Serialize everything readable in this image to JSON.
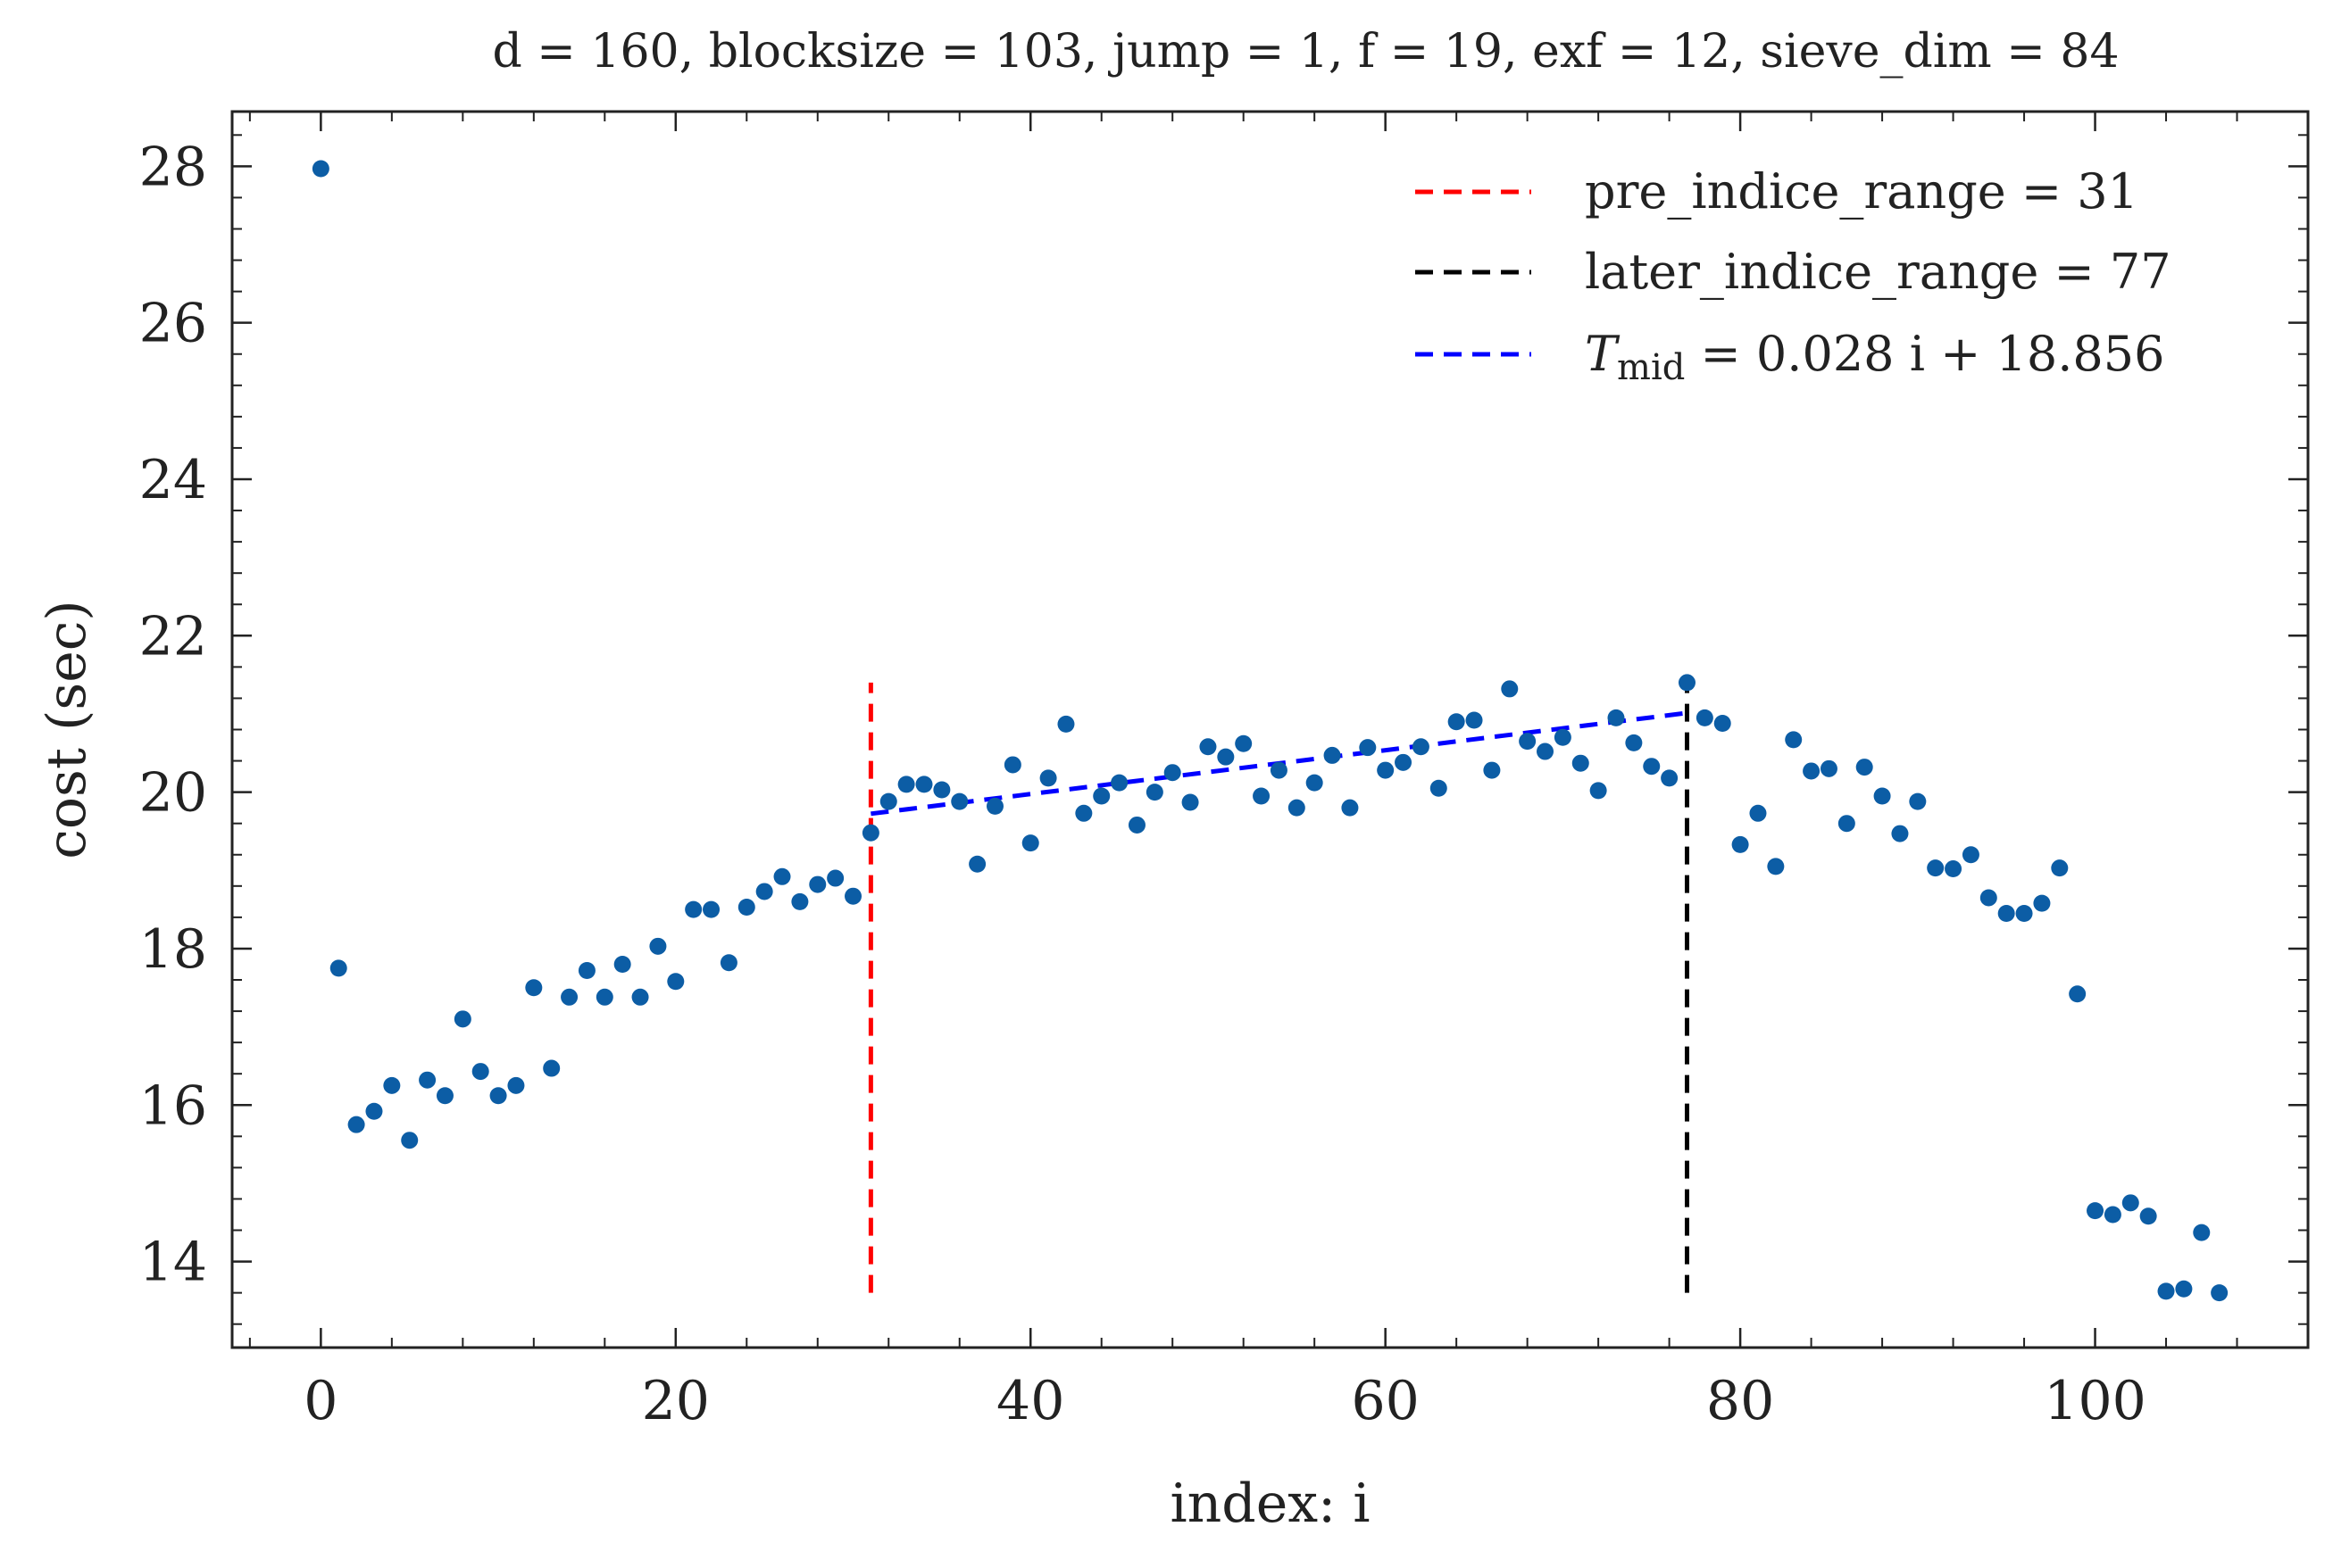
{
  "chart_data": {
    "type": "scatter",
    "title": "d = 160, blocksize = 103, jump = 1, f = 19, exf = 12, sieve_dim = 84",
    "xlabel": "index: i",
    "ylabel": "cost (sec)",
    "xlim": [
      -5,
      112
    ],
    "ylim": [
      12.9,
      28.7
    ],
    "xticks": [
      0,
      20,
      40,
      60,
      80,
      100
    ],
    "yticks": [
      14,
      16,
      18,
      20,
      22,
      24,
      26,
      28
    ],
    "x_tick_labels": [
      "0",
      "20",
      "40",
      "60",
      "80",
      "100"
    ],
    "y_tick_labels": [
      "14",
      "16",
      "18",
      "20",
      "22",
      "24",
      "26",
      "28"
    ],
    "grid": false,
    "legend_position": "top-right",
    "colors": {
      "points": "#0c5da5",
      "pre_line": "#ff0000",
      "later_line": "#000000",
      "fit_line": "#0000ff"
    },
    "series": [
      {
        "values": [
          [
            0,
            27.97
          ],
          [
            1,
            17.75
          ],
          [
            2,
            15.75
          ],
          [
            3,
            15.92
          ],
          [
            4,
            16.25
          ],
          [
            5,
            15.55
          ],
          [
            6,
            16.32
          ],
          [
            7,
            16.12
          ],
          [
            8,
            17.1
          ],
          [
            9,
            16.43
          ],
          [
            10,
            16.12
          ],
          [
            11,
            16.25
          ],
          [
            12,
            17.5
          ],
          [
            13,
            16.47
          ],
          [
            14,
            17.38
          ],
          [
            15,
            17.72
          ],
          [
            16,
            17.38
          ],
          [
            17,
            17.8
          ],
          [
            18,
            17.38
          ],
          [
            19,
            18.03
          ],
          [
            20,
            17.58
          ],
          [
            21,
            18.5
          ],
          [
            22,
            18.5
          ],
          [
            23,
            17.82
          ],
          [
            24,
            18.53
          ],
          [
            25,
            18.73
          ],
          [
            26,
            18.92
          ],
          [
            27,
            18.6
          ],
          [
            28,
            18.82
          ],
          [
            29,
            18.9
          ],
          [
            30,
            18.67
          ],
          [
            31,
            19.48
          ],
          [
            32,
            19.88
          ],
          [
            33,
            20.1
          ],
          [
            34,
            20.1
          ],
          [
            35,
            20.03
          ],
          [
            36,
            19.88
          ],
          [
            37,
            19.08
          ],
          [
            38,
            19.82
          ],
          [
            39,
            20.35
          ],
          [
            40,
            19.35
          ],
          [
            41,
            20.18
          ],
          [
            42,
            20.87
          ],
          [
            43,
            19.73
          ],
          [
            44,
            19.95
          ],
          [
            45,
            20.12
          ],
          [
            46,
            19.58
          ],
          [
            47,
            20.0
          ],
          [
            48,
            20.25
          ],
          [
            49,
            19.87
          ],
          [
            50,
            20.58
          ],
          [
            51,
            20.45
          ],
          [
            52,
            20.62
          ],
          [
            53,
            19.95
          ],
          [
            54,
            20.28
          ],
          [
            55,
            19.8
          ],
          [
            56,
            20.12
          ],
          [
            57,
            20.47
          ],
          [
            58,
            19.8
          ],
          [
            59,
            20.57
          ],
          [
            60,
            20.28
          ],
          [
            61,
            20.38
          ],
          [
            62,
            20.58
          ],
          [
            63,
            20.05
          ],
          [
            64,
            20.9
          ],
          [
            65,
            20.92
          ],
          [
            66,
            20.28
          ],
          [
            67,
            21.32
          ],
          [
            68,
            20.65
          ],
          [
            69,
            20.52
          ],
          [
            70,
            20.7
          ],
          [
            71,
            20.37
          ],
          [
            72,
            20.02
          ],
          [
            73,
            20.95
          ],
          [
            74,
            20.63
          ],
          [
            75,
            20.33
          ],
          [
            76,
            20.18
          ],
          [
            77,
            21.4
          ],
          [
            78,
            20.95
          ],
          [
            79,
            20.88
          ],
          [
            80,
            19.33
          ],
          [
            81,
            19.73
          ],
          [
            82,
            19.05
          ],
          [
            83,
            20.67
          ],
          [
            84,
            20.27
          ],
          [
            85,
            20.3
          ],
          [
            86,
            19.6
          ],
          [
            87,
            20.32
          ],
          [
            88,
            19.95
          ],
          [
            89,
            19.47
          ],
          [
            90,
            19.88
          ],
          [
            91,
            19.03
          ],
          [
            92,
            19.02
          ],
          [
            93,
            19.2
          ],
          [
            94,
            18.65
          ],
          [
            95,
            18.45
          ],
          [
            96,
            18.45
          ],
          [
            97,
            18.58
          ],
          [
            98,
            19.03
          ],
          [
            99,
            17.42
          ],
          [
            100,
            14.65
          ],
          [
            101,
            14.6
          ],
          [
            102,
            14.75
          ],
          [
            103,
            14.58
          ],
          [
            104,
            13.62
          ],
          [
            105,
            13.65
          ],
          [
            106,
            14.37
          ],
          [
            107,
            13.6
          ]
        ]
      }
    ],
    "vlines": [
      {
        "label": "pre_indice_range = 31",
        "x": 31,
        "ymin": 13.6,
        "ymax": 21.4,
        "style": "dashed"
      },
      {
        "label": "later_indice_range = 77",
        "x": 77,
        "ymin": 13.6,
        "ymax": 21.4,
        "style": "dashed"
      }
    ],
    "fit_line": {
      "label_symbol": "T",
      "label_sub": "mid",
      "label_rest": " = 0.028 i + 18.856",
      "slope": 0.028,
      "intercept": 18.856,
      "x_range": [
        31,
        77
      ],
      "style": "dashed"
    }
  }
}
